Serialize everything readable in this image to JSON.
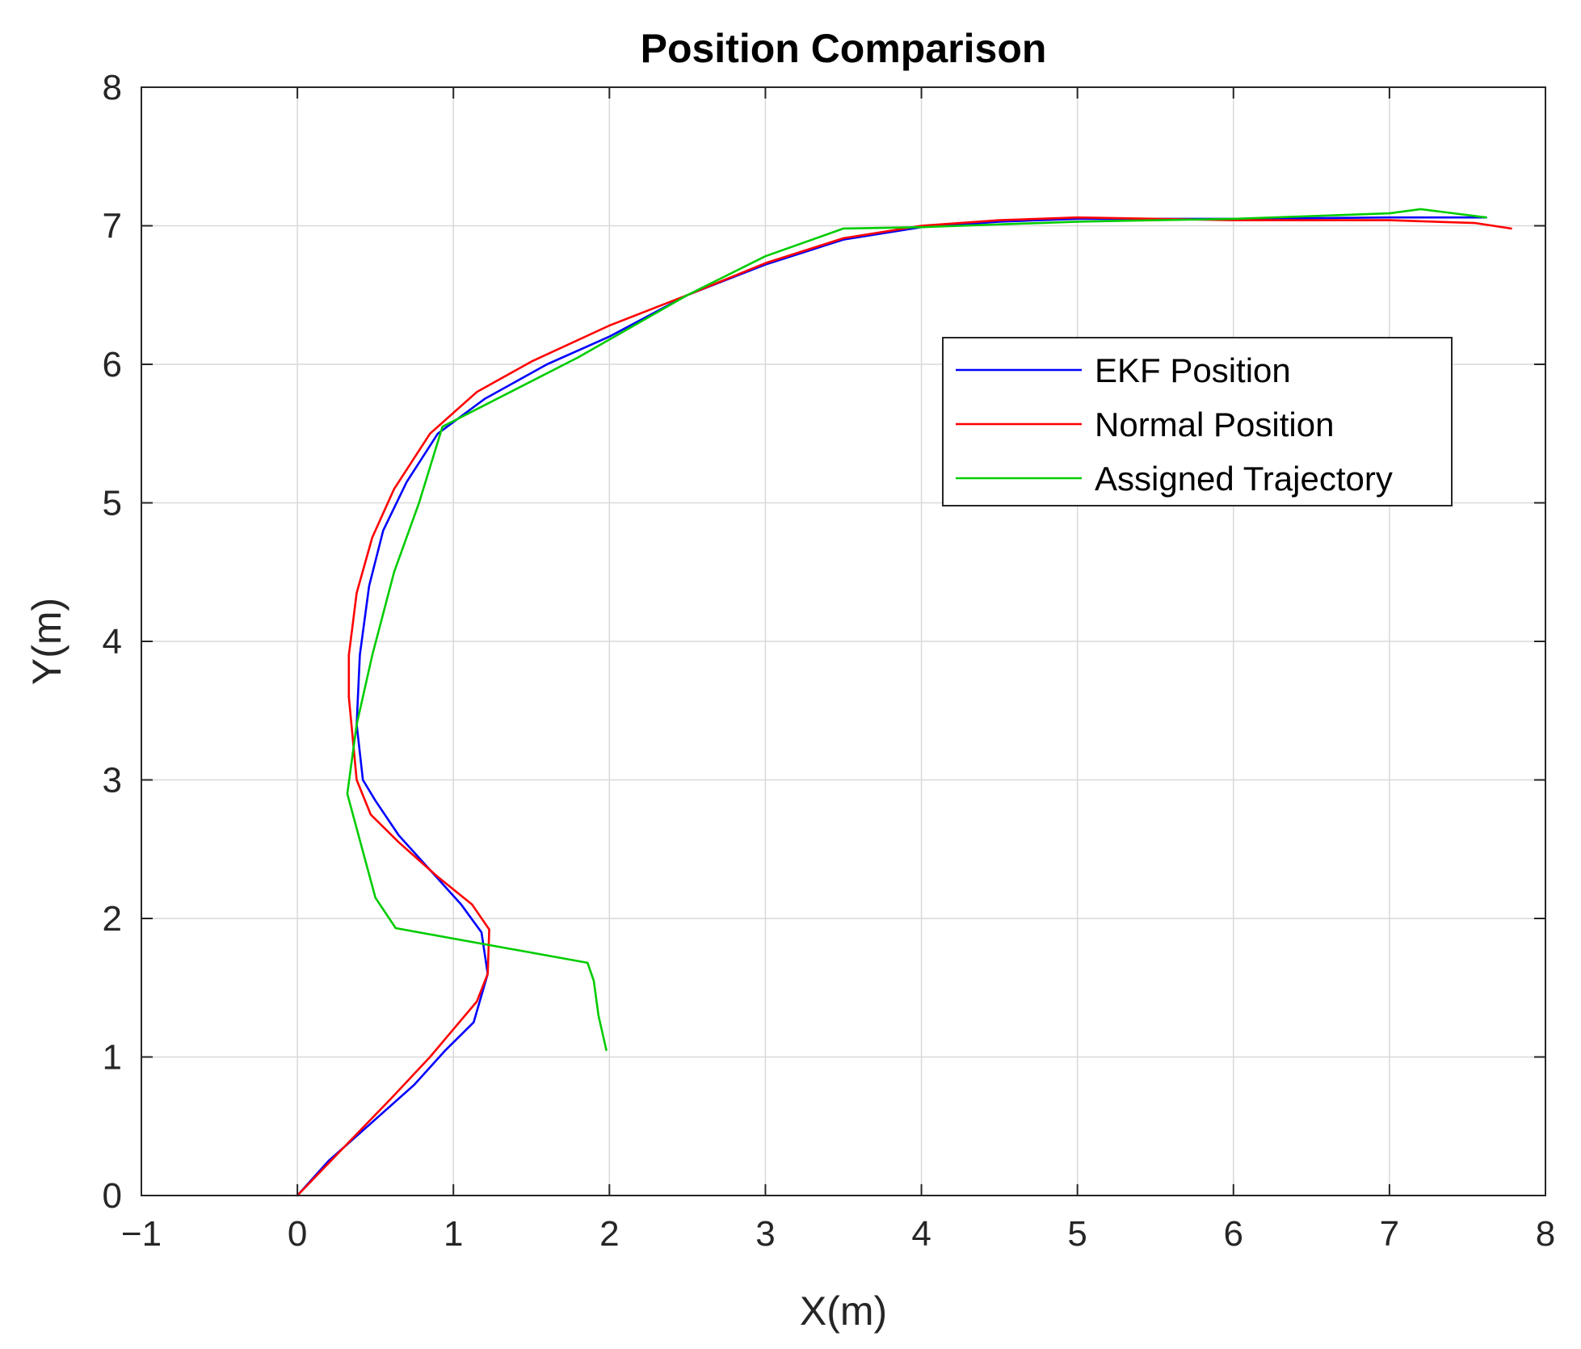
{
  "chart_data": {
    "type": "line",
    "title": "Position Comparison",
    "xlabel": "X(m)",
    "ylabel": "Y(m)",
    "xlim": [
      -1,
      8
    ],
    "ylim": [
      0,
      8
    ],
    "xticks": [
      -1,
      0,
      1,
      2,
      3,
      4,
      5,
      6,
      7,
      8
    ],
    "yticks": [
      0,
      1,
      2,
      3,
      4,
      5,
      6,
      7,
      8
    ],
    "xtick_labels": [
      "−1",
      "0",
      "1",
      "2",
      "3",
      "4",
      "5",
      "6",
      "7",
      "8"
    ],
    "ytick_labels": [
      "0",
      "1",
      "2",
      "3",
      "4",
      "5",
      "6",
      "7",
      "8"
    ],
    "grid": true,
    "legend_position": "upper-right",
    "series": [
      {
        "name": "EKF Position",
        "color": "#0000ff",
        "x": [
          0,
          0.2,
          0.45,
          0.75,
          0.95,
          1.13,
          1.22,
          1.18,
          1.05,
          0.85,
          0.65,
          0.5,
          0.42,
          0.38,
          0.4,
          0.46,
          0.55,
          0.7,
          0.9,
          1.2,
          1.6,
          2.0,
          2.5,
          3.0,
          3.5,
          4.0,
          4.5,
          5.0,
          6.0,
          7.0,
          7.62
        ],
        "y": [
          0,
          0.25,
          0.5,
          0.8,
          1.05,
          1.25,
          1.6,
          1.9,
          2.1,
          2.35,
          2.6,
          2.85,
          3.0,
          3.4,
          3.9,
          4.4,
          4.8,
          5.15,
          5.5,
          5.75,
          6.0,
          6.2,
          6.5,
          6.72,
          6.9,
          6.99,
          7.03,
          7.05,
          7.05,
          7.06,
          7.06
        ]
      },
      {
        "name": "Normal Position",
        "color": "#ff0000",
        "x": [
          0,
          0.3,
          0.6,
          0.85,
          1.0,
          1.15,
          1.22,
          1.23,
          1.12,
          0.9,
          0.65,
          0.47,
          0.38,
          0.33,
          0.33,
          0.38,
          0.48,
          0.62,
          0.85,
          1.15,
          1.5,
          2.0,
          2.5,
          3.0,
          3.5,
          4.0,
          4.5,
          5.0,
          6.0,
          7.0,
          7.55,
          7.78
        ],
        "y": [
          0,
          0.35,
          0.7,
          1.0,
          1.2,
          1.4,
          1.6,
          1.92,
          2.1,
          2.3,
          2.55,
          2.75,
          3.0,
          3.6,
          3.9,
          4.35,
          4.75,
          5.1,
          5.5,
          5.8,
          6.02,
          6.28,
          6.5,
          6.73,
          6.91,
          7.0,
          7.04,
          7.06,
          7.04,
          7.04,
          7.02,
          6.98
        ]
      },
      {
        "name": "Assigned Trajectory",
        "color": "#00cc00",
        "x": [
          1.98,
          1.93,
          1.9,
          1.86,
          0.63,
          0.5,
          0.32,
          0.38,
          0.48,
          0.62,
          0.78,
          0.93,
          1.8,
          2.5,
          3.0,
          3.5,
          4.0,
          5.0,
          6.0,
          7.0,
          7.2,
          7.62
        ],
        "y": [
          1.05,
          1.3,
          1.55,
          1.68,
          1.93,
          2.15,
          2.9,
          3.4,
          3.9,
          4.5,
          5.0,
          5.55,
          6.05,
          6.5,
          6.78,
          6.98,
          6.99,
          7.03,
          7.05,
          7.09,
          7.12,
          7.06
        ]
      }
    ]
  }
}
